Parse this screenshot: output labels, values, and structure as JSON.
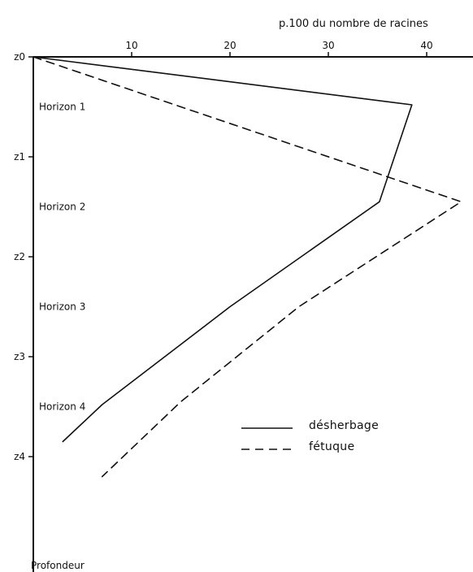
{
  "chart_data": {
    "type": "line",
    "title": "",
    "xlabel": "p.100 du nombre de racines",
    "ylabel": "Profondeur",
    "xlim": [
      0,
      44
    ],
    "x_ticks": [
      10,
      20,
      30,
      40
    ],
    "x_tick_labels": [
      "10",
      "20",
      "30",
      "40"
    ],
    "depth_levels": [
      "z0",
      "z1",
      "z2",
      "z3",
      "z4"
    ],
    "depth_range": [
      0,
      5.1
    ],
    "horizons": [
      {
        "label": "Horizon 1",
        "depth": 0.5
      },
      {
        "label": "Horizon 2",
        "depth": 1.5
      },
      {
        "label": "Horizon 3",
        "depth": 2.5
      },
      {
        "label": "Horizon 4",
        "depth": 3.5
      }
    ],
    "grid": false,
    "legend_position": "lower-right",
    "series": [
      {
        "name": "désherbage",
        "style": "solid",
        "points": [
          {
            "x": 0,
            "depth": 0
          },
          {
            "x": 38.5,
            "depth": 0.48
          },
          {
            "x": 35.2,
            "depth": 1.45
          },
          {
            "x": 20,
            "depth": 2.5
          },
          {
            "x": 7,
            "depth": 3.48
          },
          {
            "x": 3,
            "depth": 3.85
          }
        ]
      },
      {
        "name": "fétuque",
        "style": "dashed",
        "points": [
          {
            "x": 0,
            "depth": 0
          },
          {
            "x": 43.5,
            "depth": 1.45
          },
          {
            "x": 27,
            "depth": 2.5
          },
          {
            "x": 15,
            "depth": 3.45
          },
          {
            "x": 7,
            "depth": 4.2
          }
        ]
      }
    ]
  }
}
